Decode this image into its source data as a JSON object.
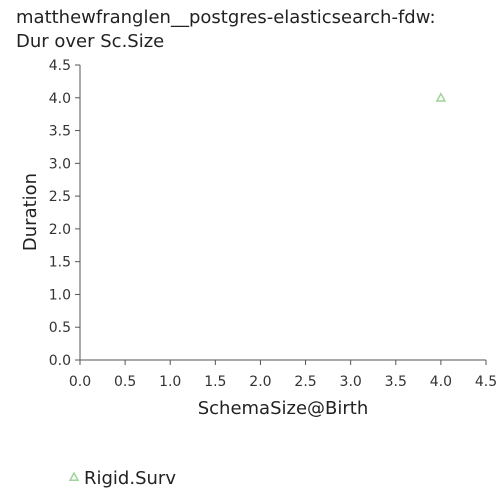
{
  "chart_data": {
    "type": "scatter",
    "title_line1": "matthewfranglen__postgres-elasticsearch-fdw:",
    "title_line2": "Dur over Sc.Size",
    "xlabel": "SchemaSize@Birth",
    "ylabel": "Duration",
    "xlim": [
      0,
      4.5
    ],
    "ylim": [
      0,
      4.5
    ],
    "xticks": [
      "0.0",
      "0.5",
      "1.0",
      "1.5",
      "2.0",
      "2.5",
      "3.0",
      "3.5",
      "4.0",
      "4.5"
    ],
    "yticks": [
      "0.0",
      "0.5",
      "1.0",
      "1.5",
      "2.0",
      "2.5",
      "3.0",
      "3.5",
      "4.0",
      "4.5"
    ],
    "grid": false,
    "legend_position": "bottom-left",
    "series": [
      {
        "name": "Rigid.Surv",
        "marker": "triangle",
        "color": "#9fd49a",
        "points": [
          {
            "x": 4.0,
            "y": 4.0
          }
        ]
      }
    ]
  }
}
